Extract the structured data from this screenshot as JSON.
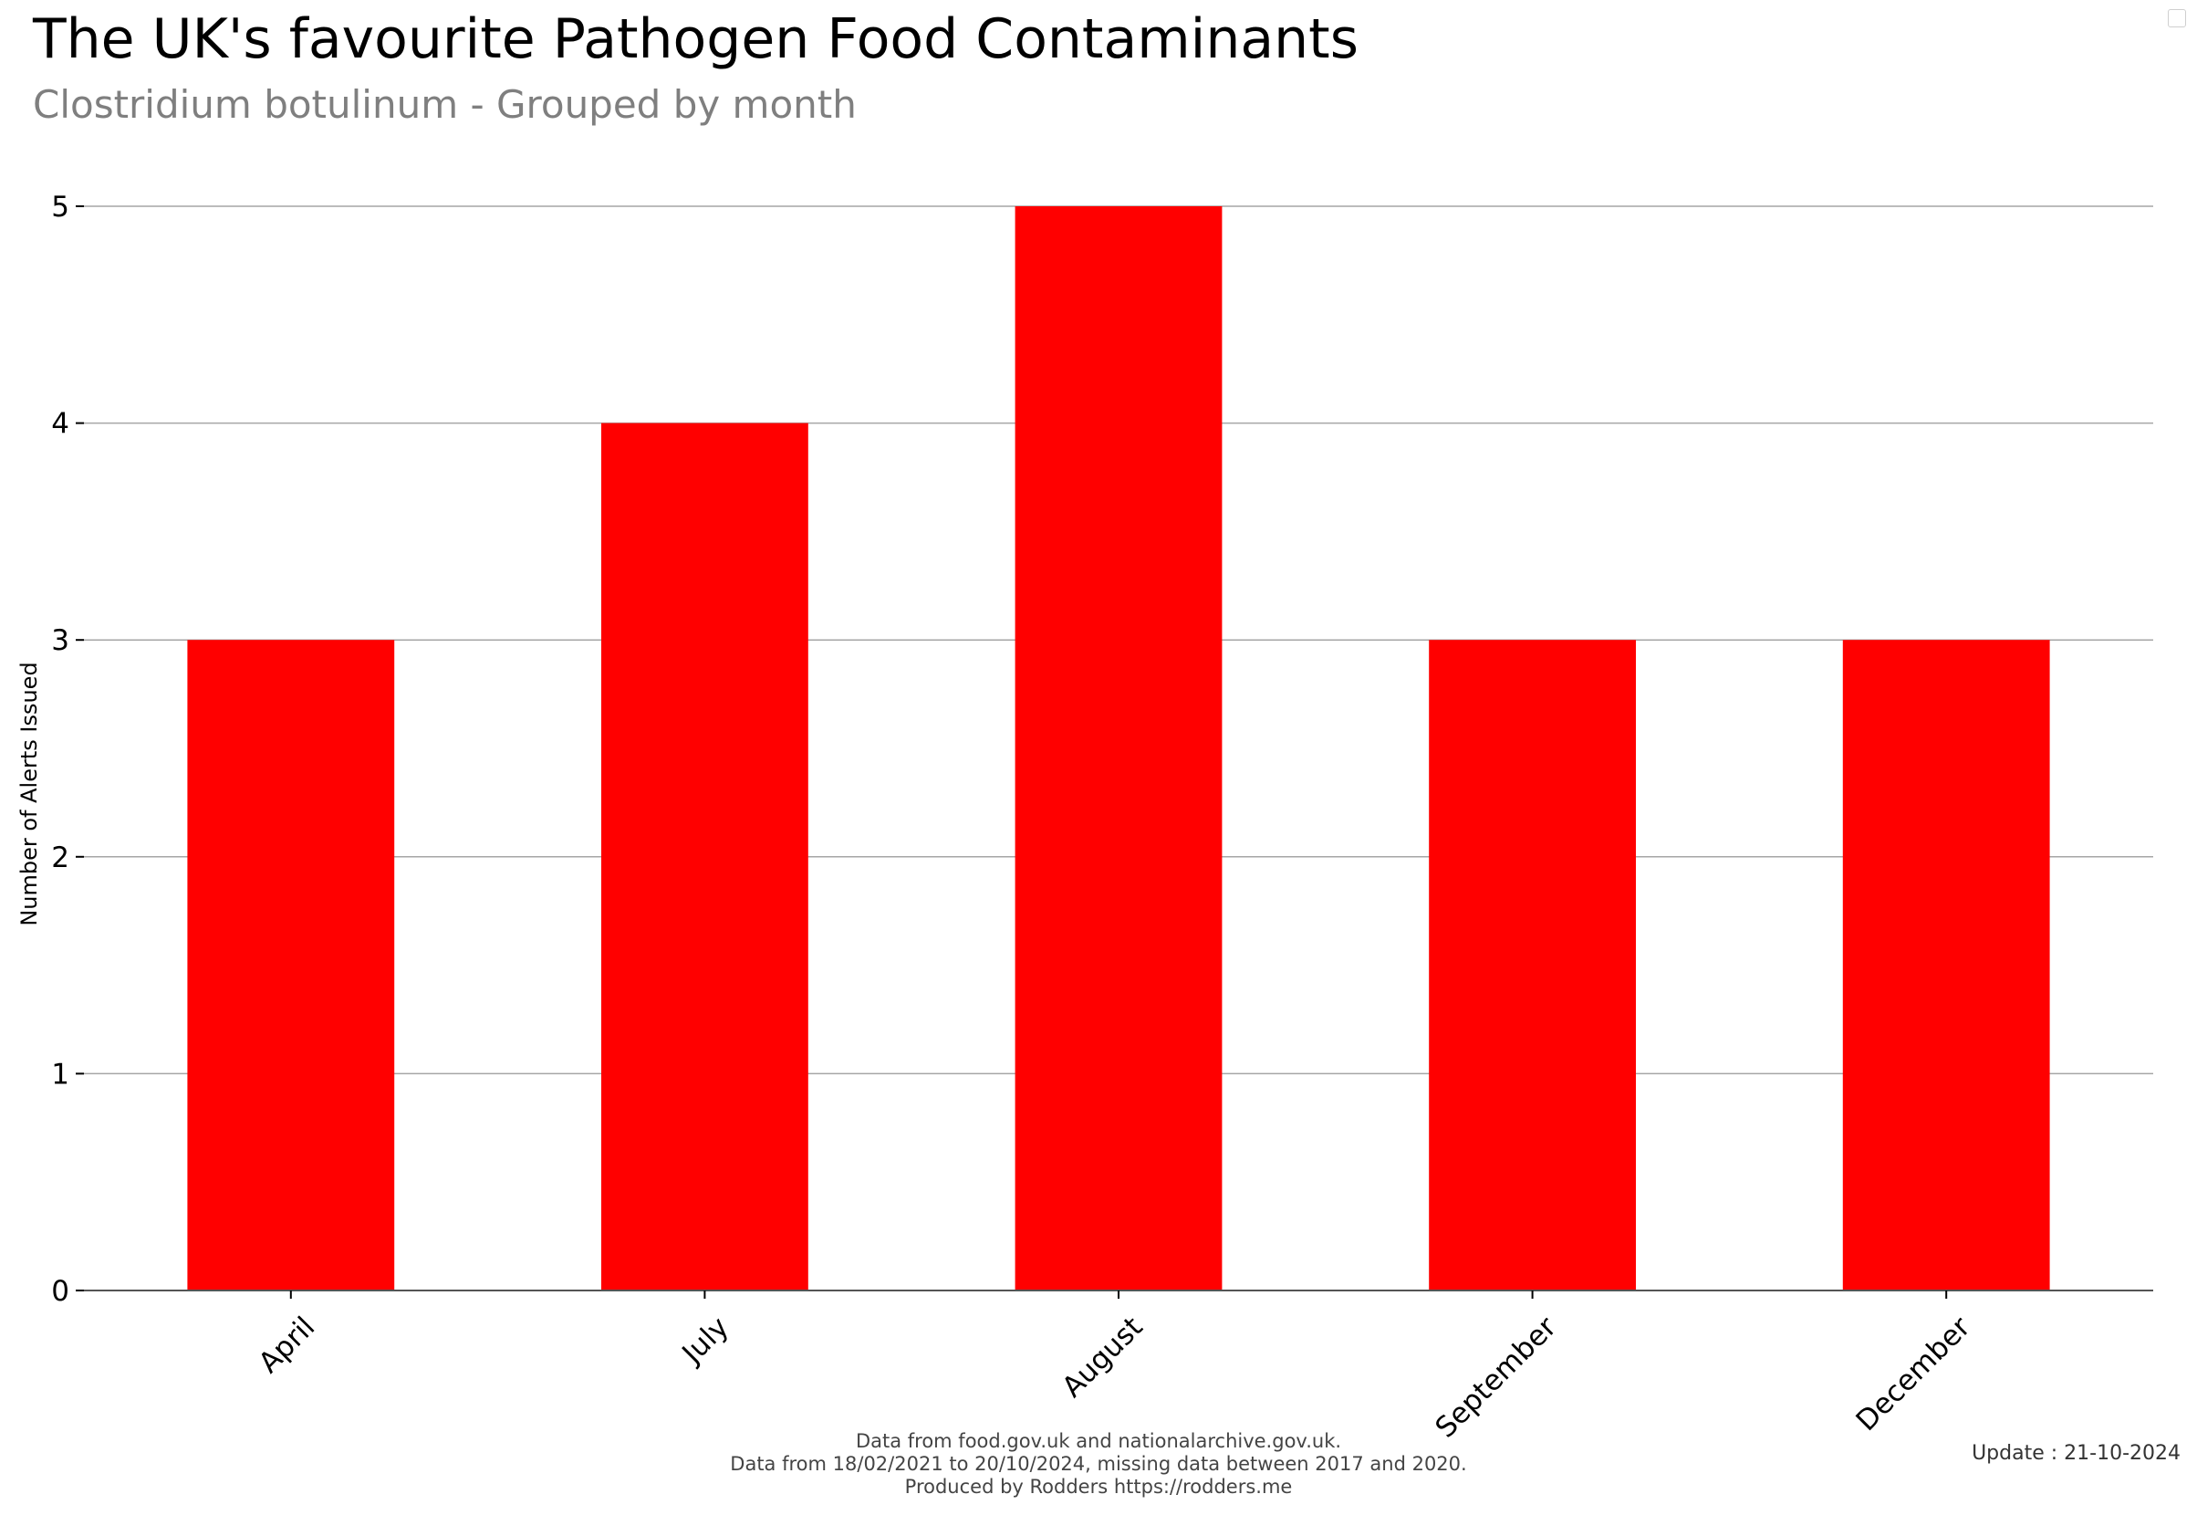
{
  "title": "The UK's favourite Pathogen Food Contaminants",
  "subtitle": "Clostridium botulinum - Grouped by month",
  "footer": {
    "line1": "Data from food.gov.uk and nationalarchive.gov.uk.",
    "line2": "Data from 18/02/2021 to 20/10/2024, missing data between 2017 and 2020.",
    "line3": "Produced by Rodders https://rodders.me"
  },
  "update": "Update : 21-10-2024",
  "chart_data": {
    "type": "bar",
    "categories": [
      "April",
      "July",
      "August",
      "September",
      "December"
    ],
    "values": [
      3,
      4,
      5,
      3,
      3
    ],
    "ylabel": "Number of Alerts Issued",
    "xlabel": "",
    "ylim": [
      0,
      5
    ],
    "yticks": [
      0,
      1,
      2,
      3,
      4,
      5
    ],
    "grid": true,
    "bar_color": "#ff0000"
  }
}
